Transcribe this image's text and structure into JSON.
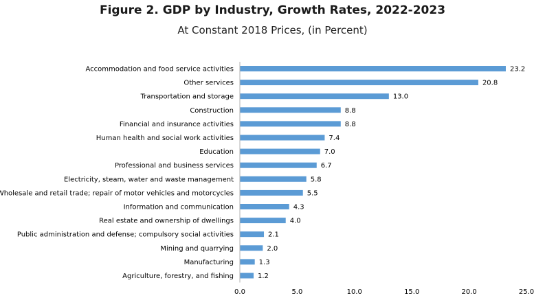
{
  "chart_data": {
    "type": "bar",
    "orientation": "horizontal",
    "title": "Figure 2. GDP by Industry, Growth Rates, 2022-2023",
    "subtitle": "At Constant 2018 Prices, (in Percent)",
    "xlabel": "",
    "ylabel": "",
    "xlim": [
      0,
      25
    ],
    "x_ticks": [
      "0.0",
      "5.0",
      "10.0",
      "15.0",
      "20.0",
      "25.0"
    ],
    "categories": [
      "Accommodation and food service activities",
      "Other services",
      "Transportation and storage",
      "Construction",
      "Financial and insurance activities",
      "Human health and social work activities",
      "Education",
      "Professional and business services",
      "Electricity, steam, water and waste management",
      "Wholesale and retail trade; repair of motor vehicles and motorcycles",
      "Information and communication",
      "Real estate and ownership of dwellings",
      "Public administration and defense; compulsory social activities",
      "Mining and quarrying",
      "Manufacturing",
      "Agriculture, forestry, and fishing"
    ],
    "values": [
      23.2,
      20.8,
      13.0,
      8.8,
      8.8,
      7.4,
      7.0,
      6.7,
      5.8,
      5.5,
      4.3,
      4.0,
      2.1,
      2.0,
      1.3,
      1.2
    ],
    "value_labels": [
      "23.2",
      "20.8",
      "13.0",
      "8.8",
      "8.8",
      "7.4",
      "7.0",
      "6.7",
      "5.8",
      "5.5",
      "4.3",
      "4.0",
      "2.1",
      "2.0",
      "1.3",
      "1.2"
    ],
    "bar_color": "#5b9bd5",
    "grid": false
  }
}
